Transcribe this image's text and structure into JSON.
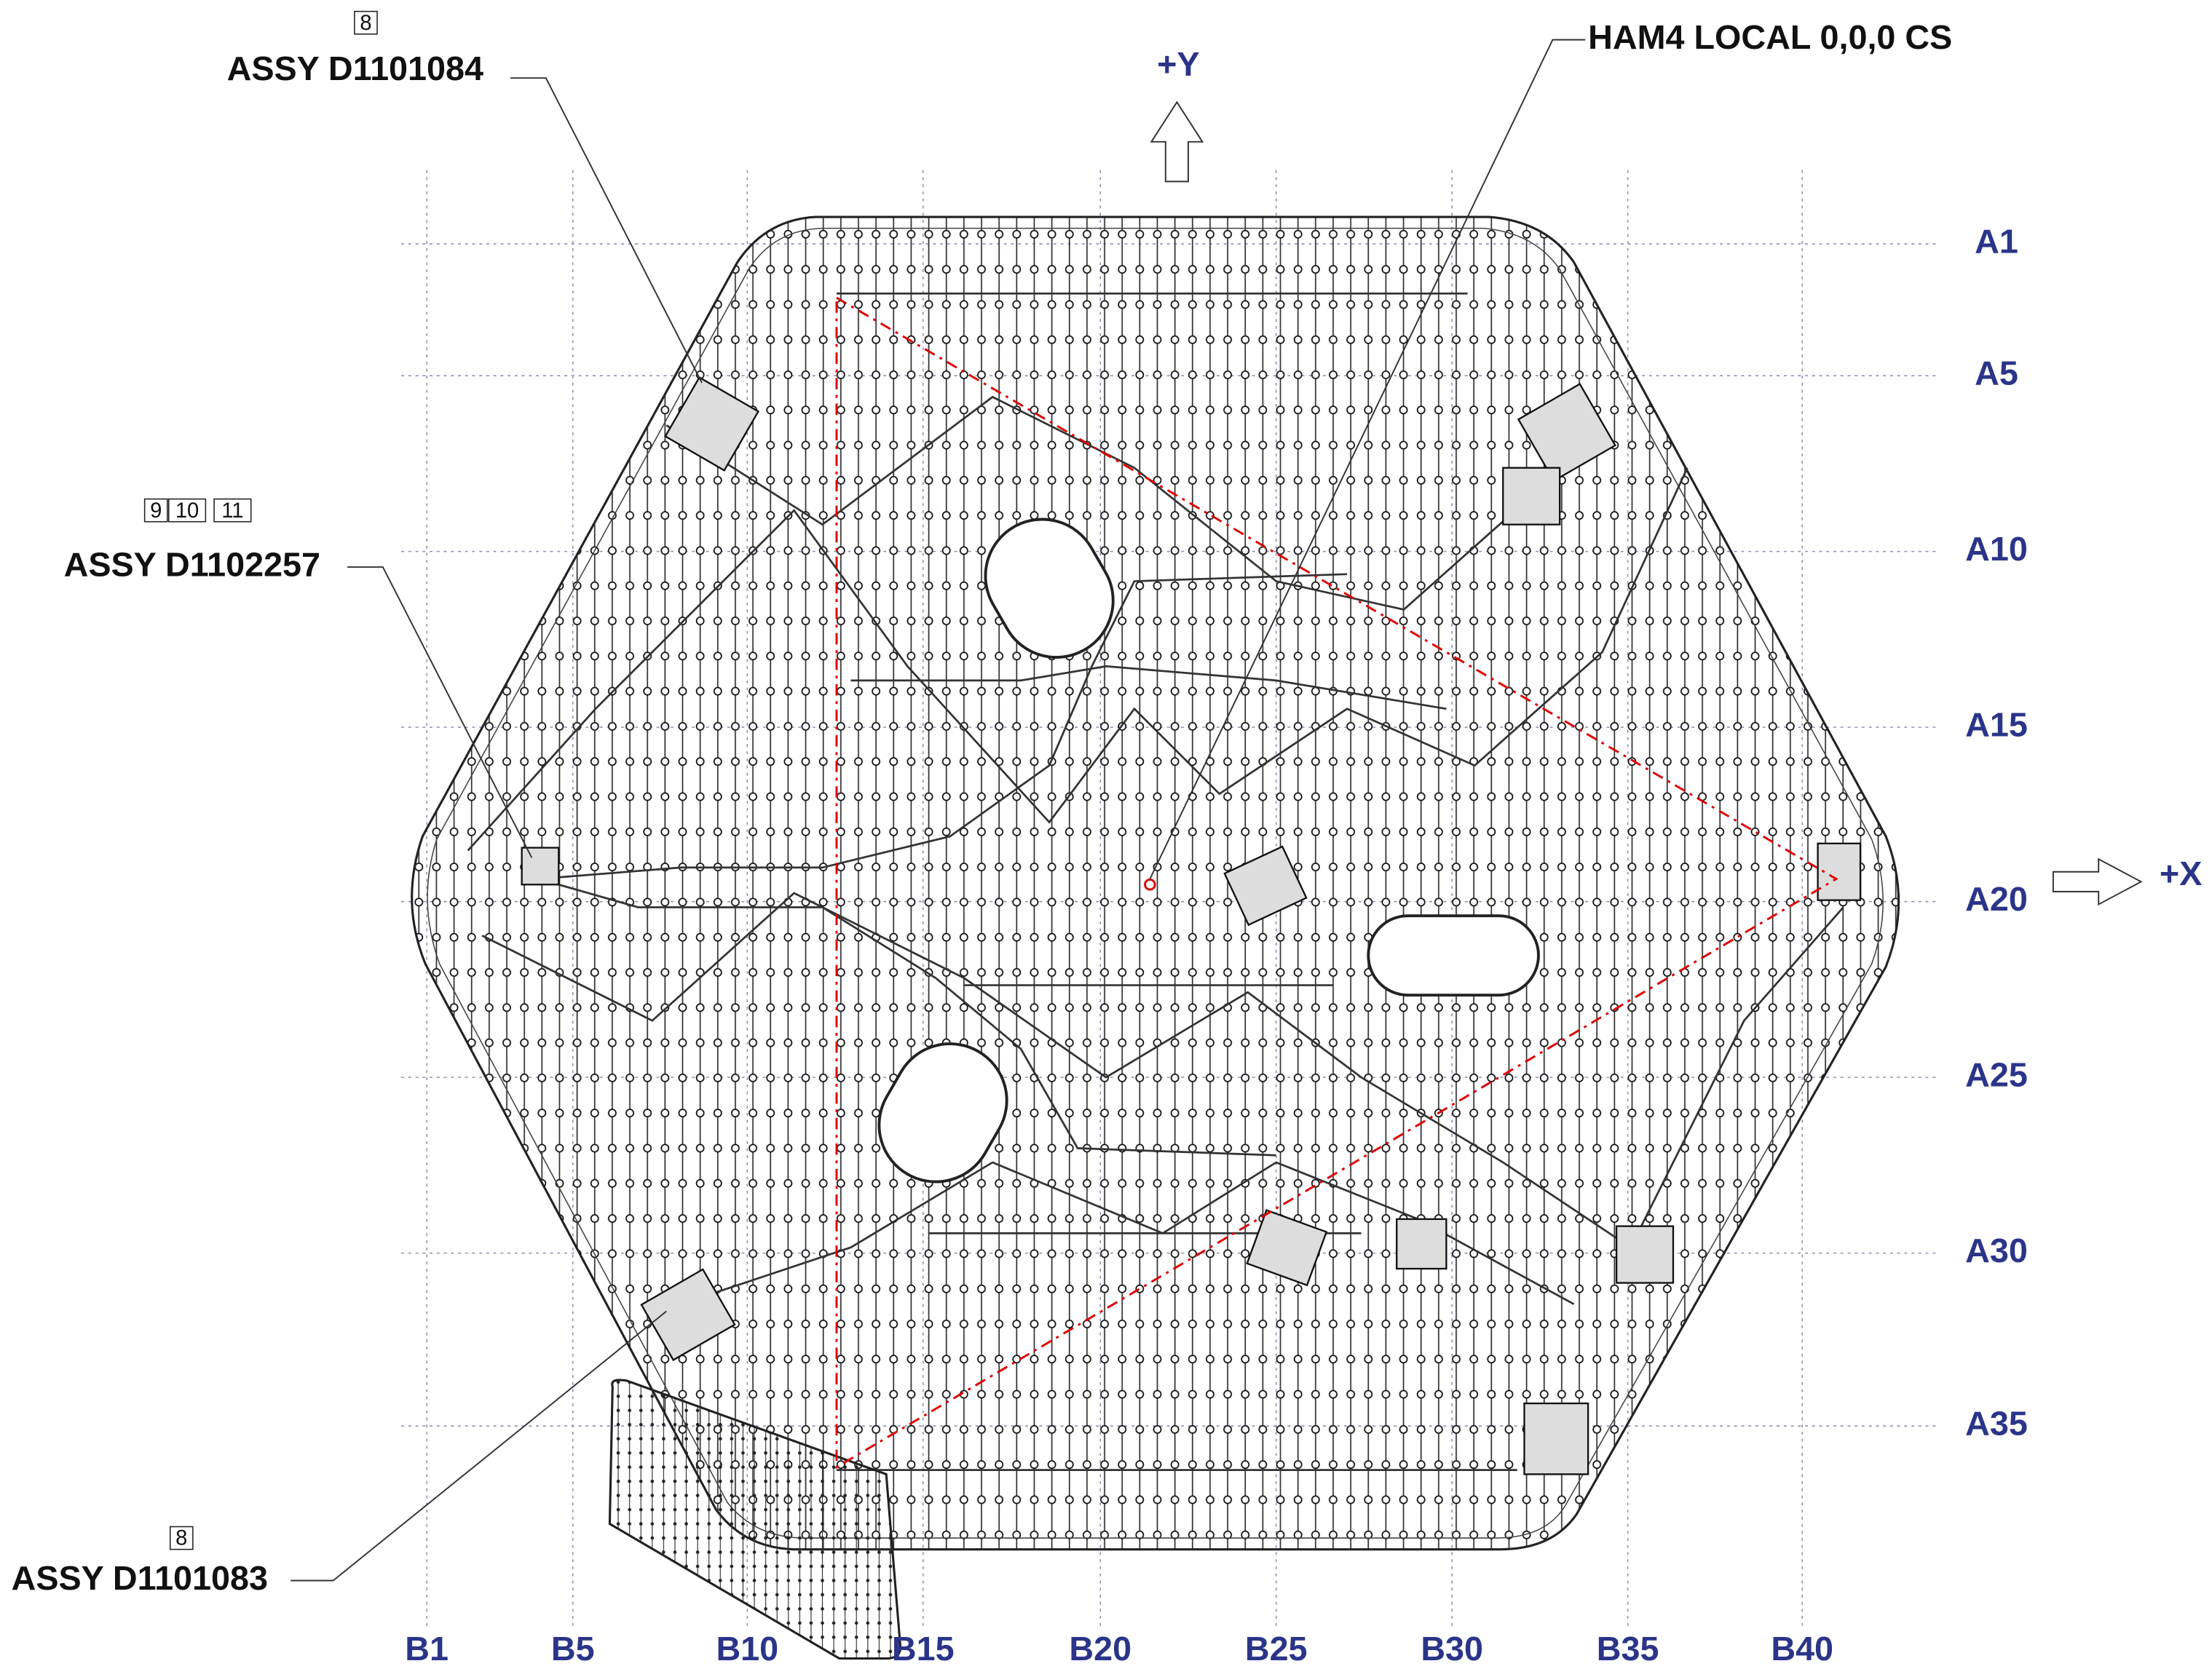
{
  "annotations": [
    {
      "item_numbers": [
        "8"
      ],
      "label": "ASSY D1101084"
    },
    {
      "item_numbers": [
        "9",
        "10",
        "11"
      ],
      "label": "ASSY D1102257"
    },
    {
      "item_numbers": [
        "8"
      ],
      "label": "ASSY D1101083"
    }
  ],
  "origin_label": "HAM4 LOCAL 0,0,0 CS",
  "axes": {
    "y": "+Y",
    "x": "+X"
  },
  "rows": [
    "A1",
    "A5",
    "A10",
    "A15",
    "A20",
    "A25",
    "A30",
    "A35"
  ],
  "columns": [
    "B1",
    "B5",
    "B10",
    "B15",
    "B20",
    "B25",
    "B30",
    "B35",
    "B40"
  ]
}
